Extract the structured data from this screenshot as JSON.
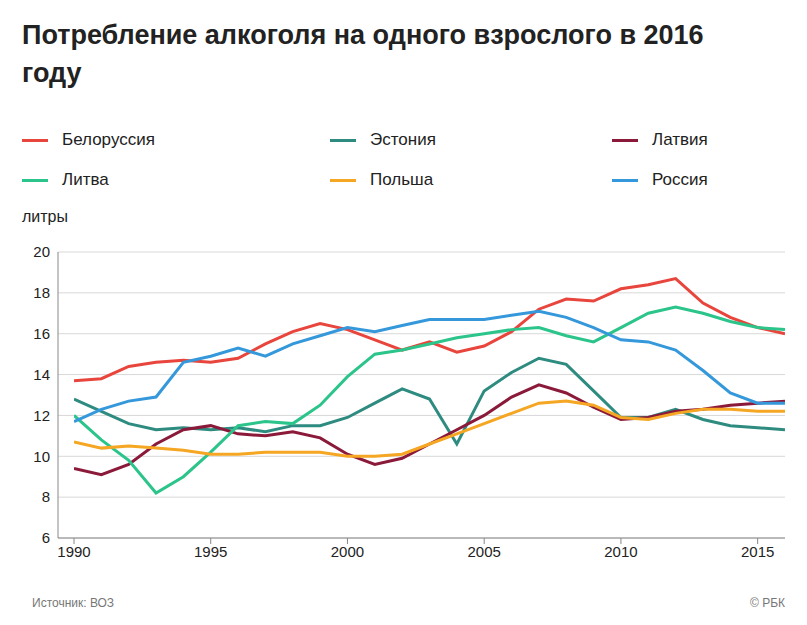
{
  "chart_data": {
    "type": "line",
    "title": "Потребление алкоголя на одного взрослого в 2016 году",
    "ylabel": "литры",
    "source": "Источник: ВОЗ",
    "credit": "© РБК",
    "x": [
      1990,
      1991,
      1992,
      1993,
      1994,
      1995,
      1996,
      1997,
      1998,
      1999,
      2000,
      2001,
      2002,
      2003,
      2004,
      2005,
      2006,
      2007,
      2008,
      2009,
      2010,
      2011,
      2012,
      2013,
      2014,
      2015,
      2016
    ],
    "xlim": [
      1990,
      2016
    ],
    "xticks": [
      1990,
      1995,
      2000,
      2005,
      2010,
      2015
    ],
    "ylim": [
      6,
      20
    ],
    "yticks": [
      6,
      8,
      10,
      12,
      14,
      16,
      18,
      20
    ],
    "grid": true,
    "series": [
      {
        "name": "Белоруссия",
        "color": "#e8453c",
        "values": [
          13.7,
          13.8,
          14.4,
          14.6,
          14.7,
          14.6,
          14.8,
          15.5,
          16.1,
          16.5,
          16.2,
          15.7,
          15.2,
          15.6,
          15.1,
          15.4,
          16.1,
          17.2,
          17.7,
          17.6,
          18.2,
          18.4,
          18.7,
          17.5,
          16.8,
          16.3,
          16.0
        ]
      },
      {
        "name": "Эстония",
        "color": "#2e8b80",
        "values": [
          12.8,
          12.2,
          11.6,
          11.3,
          11.4,
          11.3,
          11.4,
          11.2,
          11.5,
          11.5,
          11.9,
          12.6,
          13.3,
          12.8,
          10.6,
          13.2,
          14.1,
          14.8,
          14.5,
          13.2,
          11.9,
          11.9,
          12.3,
          11.8,
          11.5,
          11.4,
          11.3
        ]
      },
      {
        "name": "Латвия",
        "color": "#8b1a3a",
        "values": [
          9.4,
          9.1,
          9.6,
          10.6,
          11.3,
          11.5,
          11.1,
          11.0,
          11.2,
          10.9,
          10.1,
          9.6,
          9.9,
          10.6,
          11.3,
          12.0,
          12.9,
          13.5,
          13.1,
          12.4,
          11.8,
          11.9,
          12.2,
          12.3,
          12.5,
          12.6,
          12.7
        ]
      },
      {
        "name": "Литва",
        "color": "#2bc48a",
        "values": [
          12.0,
          10.8,
          9.8,
          8.2,
          9.0,
          10.2,
          11.5,
          11.7,
          11.6,
          12.5,
          13.9,
          15.0,
          15.2,
          15.5,
          15.8,
          16.0,
          16.2,
          16.3,
          15.9,
          15.6,
          16.3,
          17.0,
          17.3,
          17.0,
          16.6,
          16.3,
          16.2
        ]
      },
      {
        "name": "Польша",
        "color": "#f5a623",
        "values": [
          10.7,
          10.4,
          10.5,
          10.4,
          10.3,
          10.1,
          10.1,
          10.2,
          10.2,
          10.2,
          10.0,
          10.0,
          10.1,
          10.6,
          11.1,
          11.6,
          12.1,
          12.6,
          12.7,
          12.5,
          11.9,
          11.8,
          12.1,
          12.3,
          12.3,
          12.2,
          12.2
        ]
      },
      {
        "name": "Россия",
        "color": "#3498db",
        "values": [
          11.7,
          12.3,
          12.7,
          12.9,
          14.6,
          14.9,
          15.3,
          14.9,
          15.5,
          15.9,
          16.3,
          16.1,
          16.4,
          16.7,
          16.7,
          16.7,
          16.9,
          17.1,
          16.8,
          16.3,
          15.7,
          15.6,
          15.2,
          14.2,
          13.1,
          12.6,
          12.6
        ]
      }
    ]
  }
}
